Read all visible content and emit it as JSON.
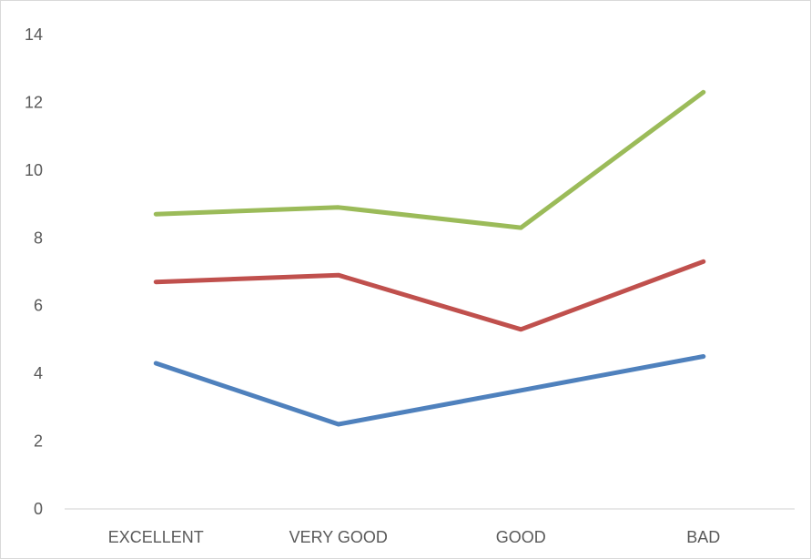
{
  "chart_data": {
    "type": "line",
    "categories": [
      "EXCELLENT",
      "VERY GOOD",
      "GOOD",
      "BAD"
    ],
    "series": [
      {
        "values": [
          4.3,
          2.5,
          3.5,
          4.5
        ],
        "color": "#4f81bd"
      },
      {
        "values": [
          6.7,
          6.9,
          5.3,
          7.3
        ],
        "color": "#c0504d"
      },
      {
        "values": [
          8.7,
          8.9,
          8.3,
          12.3
        ],
        "color": "#9bbb59"
      }
    ],
    "y_ticks": [
      "0",
      "2",
      "4",
      "6",
      "8",
      "10",
      "12",
      "14"
    ],
    "ylim": [
      0,
      14
    ],
    "grid": false,
    "legend": "none",
    "axis_color": "#d9d9d9",
    "label_color": "#595959"
  }
}
